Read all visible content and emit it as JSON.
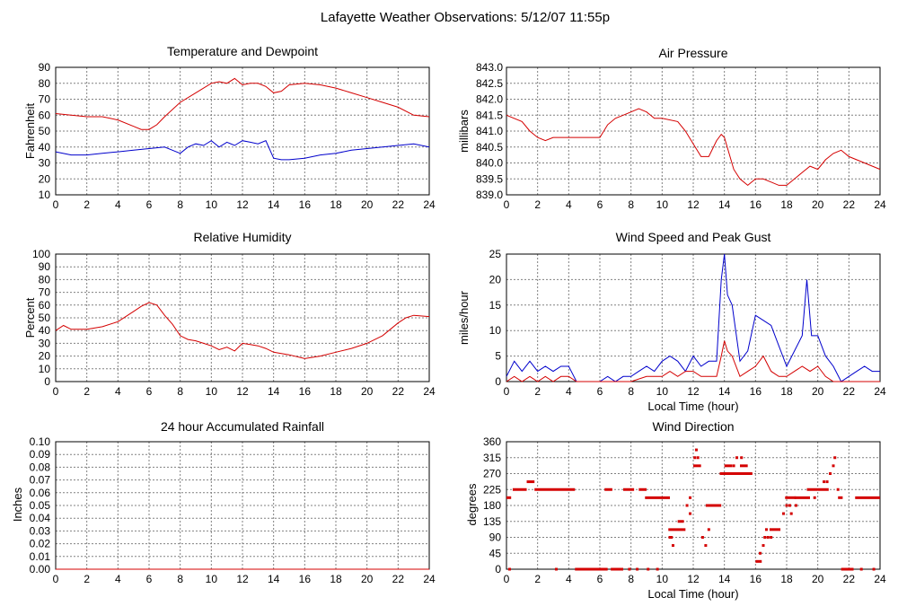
{
  "page": {
    "title": "Lafayette Weather Observations: 5/12/07 11:55p"
  },
  "colors": {
    "primary": "#d40000",
    "secondary": "#0000cc",
    "grid": "#808080"
  },
  "chart_data": [
    {
      "id": "temp",
      "type": "line",
      "title": "Temperature and Dewpoint",
      "xlabel": "",
      "ylabel": "Fahrenheit",
      "xlim": [
        0,
        24
      ],
      "ylim": [
        10,
        90
      ],
      "xticks": [
        "0",
        "2",
        "4",
        "6",
        "8",
        "10",
        "12",
        "14",
        "16",
        "18",
        "20",
        "22",
        "24"
      ],
      "yticks": [
        "10",
        "20",
        "30",
        "40",
        "50",
        "60",
        "70",
        "80",
        "90"
      ],
      "grid": true,
      "series": [
        {
          "color": "#d40000",
          "x": [
            0,
            1,
            2,
            3,
            4,
            5,
            5.5,
            6,
            6.5,
            7,
            8,
            9,
            10,
            10.5,
            11,
            11.5,
            12,
            12.5,
            13,
            13.5,
            14,
            14.5,
            15,
            16,
            17,
            18,
            19,
            20,
            21,
            22,
            23,
            24
          ],
          "y": [
            61,
            60,
            59,
            59,
            57,
            53,
            51,
            51,
            54,
            59,
            68,
            74,
            80,
            81,
            80,
            83,
            79,
            80,
            80,
            78,
            74,
            75,
            79,
            80,
            79,
            77,
            74,
            71,
            68,
            65,
            60,
            59
          ]
        },
        {
          "color": "#0000cc",
          "x": [
            0,
            1,
            2,
            3,
            4,
            5,
            6,
            7,
            7.5,
            8,
            8.5,
            9,
            9.5,
            10,
            10.5,
            11,
            11.5,
            12,
            12.5,
            13,
            13.5,
            14,
            14.5,
            15,
            16,
            17,
            18,
            19,
            20,
            21,
            22,
            23,
            24
          ],
          "y": [
            37,
            35,
            35,
            36,
            37,
            38,
            39,
            40,
            38,
            36,
            40,
            42,
            41,
            44,
            40,
            43,
            41,
            44,
            43,
            42,
            44,
            33,
            32,
            32,
            33,
            35,
            36,
            38,
            39,
            40,
            41,
            42,
            40
          ]
        }
      ]
    },
    {
      "id": "pressure",
      "type": "line",
      "title": "Air Pressure",
      "xlabel": "",
      "ylabel": "millibars",
      "xlim": [
        0,
        24
      ],
      "ylim": [
        839.0,
        843.0
      ],
      "xticks": [
        "0",
        "2",
        "4",
        "6",
        "8",
        "10",
        "12",
        "14",
        "16",
        "18",
        "20",
        "22",
        "24"
      ],
      "yticks": [
        "839.0",
        "839.5",
        "840.0",
        "840.5",
        "841.0",
        "841.5",
        "842.0",
        "842.5",
        "843.0"
      ],
      "grid": true,
      "series": [
        {
          "color": "#d40000",
          "x": [
            0,
            1,
            1.5,
            2,
            2.5,
            3,
            3.5,
            6,
            6.5,
            7,
            7.5,
            8,
            8.5,
            9,
            9.5,
            10,
            11,
            11.5,
            12,
            12.5,
            13,
            13.5,
            13.8,
            14,
            14.3,
            14.6,
            15,
            15.5,
            16,
            16.5,
            17,
            17.5,
            18,
            18.5,
            19,
            19.5,
            20,
            20.5,
            21,
            21.5,
            22,
            23,
            24
          ],
          "y": [
            841.5,
            841.3,
            841.0,
            840.8,
            840.7,
            840.8,
            840.8,
            840.8,
            841.2,
            841.4,
            841.5,
            841.6,
            841.7,
            841.6,
            841.4,
            841.4,
            841.3,
            841.0,
            840.6,
            840.2,
            840.2,
            840.7,
            840.9,
            840.8,
            840.3,
            839.8,
            839.5,
            839.3,
            839.5,
            839.5,
            839.4,
            839.3,
            839.3,
            839.5,
            839.7,
            839.9,
            839.8,
            840.1,
            840.3,
            840.4,
            840.2,
            840.0,
            839.8
          ]
        }
      ]
    },
    {
      "id": "rh",
      "type": "line",
      "title": "Relative Humidity",
      "xlabel": "",
      "ylabel": "Percent",
      "xlim": [
        0,
        24
      ],
      "ylim": [
        0,
        100
      ],
      "xticks": [
        "0",
        "2",
        "4",
        "6",
        "8",
        "10",
        "12",
        "14",
        "16",
        "18",
        "20",
        "22",
        "24"
      ],
      "yticks": [
        "0",
        "10",
        "20",
        "30",
        "40",
        "50",
        "60",
        "70",
        "80",
        "90",
        "100"
      ],
      "grid": true,
      "series": [
        {
          "color": "#d40000",
          "x": [
            0,
            0.5,
            1,
            2,
            3,
            4,
            5,
            5.5,
            6,
            6.5,
            7,
            7.5,
            8,
            8.5,
            9,
            9.5,
            10,
            10.5,
            11,
            11.5,
            12,
            12.5,
            13,
            13.5,
            14,
            14.5,
            15,
            16,
            17,
            18,
            19,
            20,
            21,
            22,
            22.5,
            23,
            24
          ],
          "y": [
            40,
            44,
            41,
            41,
            43,
            47,
            55,
            59,
            62,
            60,
            52,
            45,
            36,
            33,
            32,
            30,
            28,
            25,
            27,
            24,
            30,
            29,
            28,
            26,
            23,
            22,
            21,
            18,
            20,
            23,
            26,
            30,
            36,
            46,
            50,
            52,
            51
          ]
        }
      ]
    },
    {
      "id": "wind",
      "type": "line",
      "title": "Wind Speed and Peak Gust",
      "xlabel": "Local Time (hour)",
      "ylabel": "miles/hour",
      "xlim": [
        0,
        24
      ],
      "ylim": [
        0,
        25
      ],
      "xticks": [
        "0",
        "2",
        "4",
        "6",
        "8",
        "10",
        "12",
        "14",
        "16",
        "18",
        "20",
        "22",
        "24"
      ],
      "yticks": [
        "0",
        "5",
        "10",
        "15",
        "20",
        "25"
      ],
      "grid": true,
      "series": [
        {
          "color": "#0000cc",
          "x": [
            0,
            0.5,
            1,
            1.5,
            2,
            2.5,
            3,
            3.5,
            4,
            4.5,
            5,
            6,
            6.5,
            7,
            7.5,
            8,
            8.5,
            9,
            9.5,
            10,
            10.5,
            11,
            11.5,
            12,
            12.5,
            13,
            13.5,
            13.8,
            14,
            14.2,
            14.5,
            15,
            15.5,
            16,
            16.5,
            17,
            17.5,
            18,
            18.5,
            19,
            19.3,
            19.6,
            20,
            20.5,
            21,
            21.5,
            22,
            22.5,
            23,
            23.5,
            24
          ],
          "y": [
            1,
            4,
            2,
            4,
            2,
            3,
            2,
            3,
            3,
            0,
            0,
            0,
            1,
            0,
            1,
            1,
            2,
            3,
            2,
            4,
            5,
            4,
            2,
            5,
            3,
            4,
            4,
            20,
            25,
            17,
            15,
            4,
            6,
            13,
            12,
            11,
            7,
            3,
            6,
            9,
            20,
            9,
            9,
            5,
            3,
            0,
            1,
            2,
            3,
            2,
            2
          ]
        },
        {
          "color": "#d40000",
          "x": [
            0,
            0.5,
            1,
            1.5,
            2,
            2.5,
            3,
            3.5,
            4,
            4.5,
            5,
            6,
            6.5,
            7,
            8,
            9,
            10,
            10.5,
            11,
            11.5,
            12,
            12.5,
            13,
            13.5,
            13.8,
            14,
            14.2,
            14.5,
            15,
            15.5,
            16,
            16.5,
            17,
            17.5,
            18,
            18.5,
            19,
            19.5,
            20,
            20.5,
            21,
            21.5,
            22,
            23,
            24
          ],
          "y": [
            0,
            1,
            0,
            1,
            0,
            1,
            0,
            1,
            1,
            0,
            0,
            0,
            0,
            0,
            0,
            1,
            1,
            2,
            1,
            2,
            2,
            1,
            1,
            1,
            5,
            8,
            6,
            5,
            1,
            2,
            3,
            5,
            2,
            1,
            1,
            2,
            3,
            2,
            3,
            1,
            0,
            0,
            0,
            0,
            0
          ]
        }
      ]
    },
    {
      "id": "rain",
      "type": "line",
      "title": "24 hour Accumulated Rainfall",
      "xlabel": "",
      "ylabel": "Inches",
      "xlim": [
        0,
        24
      ],
      "ylim": [
        0,
        0.1
      ],
      "xticks": [
        "0",
        "2",
        "4",
        "6",
        "8",
        "10",
        "12",
        "14",
        "16",
        "18",
        "20",
        "22",
        "24"
      ],
      "yticks": [
        "0.00",
        "0.01",
        "0.02",
        "0.03",
        "0.04",
        "0.05",
        "0.06",
        "0.07",
        "0.08",
        "0.09",
        "0.10"
      ],
      "grid": true,
      "series": [
        {
          "color": "#d40000",
          "x": [
            0,
            24
          ],
          "y": [
            0,
            0
          ]
        }
      ]
    },
    {
      "id": "dir",
      "type": "scatter",
      "title": "Wind Direction",
      "xlabel": "Local Time (hour)",
      "ylabel": "degrees",
      "xlim": [
        0,
        24
      ],
      "ylim": [
        0,
        360
      ],
      "xticks": [
        "0",
        "2",
        "4",
        "6",
        "8",
        "10",
        "12",
        "14",
        "16",
        "18",
        "20",
        "22",
        "24"
      ],
      "yticks": [
        "0",
        "45",
        "90",
        "135",
        "180",
        "225",
        "270",
        "315",
        "360"
      ],
      "grid": true,
      "segments": [
        {
          "x0": 0,
          "x1": 0.3,
          "y": 202
        },
        {
          "x0": 0.4,
          "x1": 1.3,
          "y": 225
        },
        {
          "x0": 1.3,
          "x1": 1.8,
          "y": 247
        },
        {
          "x0": 1.8,
          "x1": 4.4,
          "y": 225
        },
        {
          "x0": 4.4,
          "x1": 6.5,
          "y": 0
        },
        {
          "x0": 6.3,
          "x1": 6.8,
          "y": 225
        },
        {
          "x0": 6.7,
          "x1": 7.5,
          "y": 0
        },
        {
          "x0": 7.5,
          "x1": 8.2,
          "y": 225
        },
        {
          "x0": 8.5,
          "x1": 9.0,
          "y": 225
        },
        {
          "x0": 8.9,
          "x1": 10.5,
          "y": 202
        },
        {
          "x0": 10.4,
          "x1": 11.5,
          "y": 112
        },
        {
          "x0": 11.0,
          "x1": 11.4,
          "y": 135
        },
        {
          "x0": 12.0,
          "x1": 12.5,
          "y": 292
        },
        {
          "x0": 12.8,
          "x1": 13.8,
          "y": 180
        },
        {
          "x0": 13.7,
          "x1": 15.8,
          "y": 270
        },
        {
          "x0": 14.0,
          "x1": 14.5,
          "y": 292
        },
        {
          "x0": 15.0,
          "x1": 15.5,
          "y": 292
        },
        {
          "x0": 16.0,
          "x1": 16.4,
          "y": 22
        },
        {
          "x0": 16.9,
          "x1": 17.6,
          "y": 112
        },
        {
          "x0": 17.9,
          "x1": 18.6,
          "y": 202
        },
        {
          "x0": 18.5,
          "x1": 19.5,
          "y": 202
        },
        {
          "x0": 19.3,
          "x1": 20.0,
          "y": 225
        },
        {
          "x0": 20.0,
          "x1": 20.7,
          "y": 225
        },
        {
          "x0": 21.3,
          "x1": 21.6,
          "y": 202
        },
        {
          "x0": 21.5,
          "x1": 22.3,
          "y": 0
        },
        {
          "x0": 22.4,
          "x1": 24.0,
          "y": 202
        }
      ],
      "points": [
        [
          0.2,
          0
        ],
        [
          3.2,
          0
        ],
        [
          7.9,
          0
        ],
        [
          8.4,
          0
        ],
        [
          9.1,
          0
        ],
        [
          9.7,
          0
        ],
        [
          10.5,
          90
        ],
        [
          10.7,
          67
        ],
        [
          10.6,
          90
        ],
        [
          11.6,
          180
        ],
        [
          11.8,
          157
        ],
        [
          11.8,
          202
        ],
        [
          12.1,
          315
        ],
        [
          12.2,
          337
        ],
        [
          12.3,
          315
        ],
        [
          12.6,
          90
        ],
        [
          12.8,
          67
        ],
        [
          13.0,
          112
        ],
        [
          13.2,
          180
        ],
        [
          14.6,
          292
        ],
        [
          14.8,
          315
        ],
        [
          15.1,
          315
        ],
        [
          16.3,
          45
        ],
        [
          16.5,
          67
        ],
        [
          16.6,
          90
        ],
        [
          16.8,
          90
        ],
        [
          16.7,
          112
        ],
        [
          17.0,
          90
        ],
        [
          17.8,
          157
        ],
        [
          18.0,
          180
        ],
        [
          18.2,
          180
        ],
        [
          18.3,
          157
        ],
        [
          18.6,
          180
        ],
        [
          19.8,
          202
        ],
        [
          20.4,
          247
        ],
        [
          20.6,
          247
        ],
        [
          20.8,
          270
        ],
        [
          21.0,
          292
        ],
        [
          21.1,
          315
        ],
        [
          21.3,
          225
        ],
        [
          22.8,
          0
        ],
        [
          23.6,
          0
        ]
      ]
    }
  ]
}
